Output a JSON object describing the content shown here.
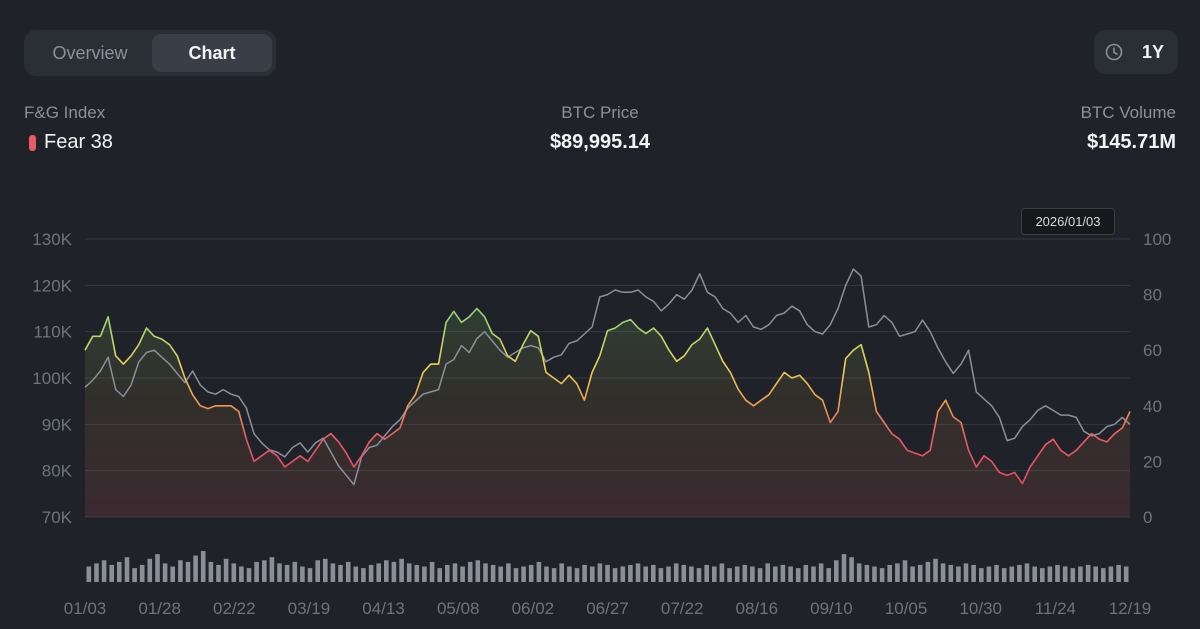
{
  "tabs": {
    "overview": "Overview",
    "chart": "Chart"
  },
  "range": {
    "label": "1Y",
    "icon": "clock-icon"
  },
  "stats": {
    "fg_label": "F&G Index",
    "fg_value": "Fear 38",
    "price_label": "BTC Price",
    "price_value": "$89,995.14",
    "volume_label": "BTC Volume",
    "volume_value": "$145.71M"
  },
  "tooltip_date": "2026/01/03",
  "colors": {
    "background": "#1f2228",
    "price_line": "#8a909a",
    "fear": "#e85a66",
    "neutral": "#e8d35a",
    "greed": "#7cd37a"
  },
  "chart_data": {
    "type": "line",
    "x_ticks": [
      "01/03",
      "01/28",
      "02/22",
      "03/19",
      "04/13",
      "05/08",
      "06/02",
      "06/27",
      "07/22",
      "08/16",
      "09/10",
      "10/05",
      "10/30",
      "11/24",
      "12/19"
    ],
    "y_left": {
      "label": "",
      "ticks": [
        "70K",
        "80K",
        "90K",
        "100K",
        "110K",
        "120K",
        "130K"
      ],
      "range": [
        70000,
        130000
      ]
    },
    "y_right": {
      "label": "",
      "ticks": [
        "0",
        "20",
        "40",
        "60",
        "80",
        "100"
      ],
      "range": [
        0,
        100
      ]
    },
    "grid": true,
    "series": [
      {
        "axis": "left",
        "values": [
          98000,
          99500,
          101500,
          104500,
          97500,
          96000,
          98500,
          103500,
          105500,
          106000,
          104500,
          103000,
          101000,
          99000,
          101500,
          98500,
          97000,
          96500,
          97500,
          96500,
          96000,
          93500,
          88000,
          86000,
          84500,
          84000,
          83000,
          85000,
          86000,
          84000,
          86000,
          87000,
          84000,
          81000,
          79000,
          77000,
          83000,
          85000,
          85500,
          87500,
          89500,
          91000,
          93500,
          95000,
          96500,
          97000,
          97500,
          103000,
          104000,
          107000,
          105500,
          108500,
          110000,
          108000,
          106000,
          104500,
          105500,
          106500,
          107000,
          106500,
          103500,
          104500,
          105000,
          107500,
          108000,
          109500,
          111000,
          117500,
          118000,
          119000,
          118500,
          118500,
          119000,
          117500,
          116500,
          114500,
          116000,
          118000,
          117000,
          119000,
          122500,
          118500,
          117500,
          115000,
          114000,
          112000,
          113500,
          111000,
          110500,
          111500,
          113500,
          114000,
          115500,
          114500,
          111500,
          110000,
          109500,
          111500,
          115000,
          120000,
          123500,
          122000,
          111000,
          111500,
          113500,
          112000,
          109000,
          109500,
          110000,
          112500,
          110000,
          106500,
          103500,
          101000,
          103000,
          106000,
          97000,
          95500,
          94000,
          91500,
          86500,
          87000,
          89500,
          91000,
          93000,
          94000,
          93000,
          92000,
          92000,
          91500,
          88500,
          87500,
          88000,
          89500,
          90000,
          91500,
          89995
        ]
      },
      {
        "axis": "right",
        "values": [
          60,
          65,
          65,
          72,
          58,
          55,
          58,
          62,
          68,
          65,
          64,
          62,
          58,
          50,
          44,
          40,
          39,
          40,
          40,
          40,
          38,
          28,
          20,
          22,
          24,
          22,
          18,
          20,
          22,
          20,
          24,
          28,
          30,
          27,
          23,
          18,
          22,
          27,
          30,
          28,
          30,
          32,
          40,
          44,
          52,
          55,
          55,
          70,
          74,
          70,
          72,
          75,
          72,
          66,
          64,
          58,
          56,
          62,
          67,
          65,
          52,
          50,
          48,
          51,
          48,
          42,
          52,
          58,
          67,
          68,
          70,
          71,
          68,
          66,
          68,
          65,
          60,
          56,
          58,
          62,
          64,
          68,
          62,
          56,
          52,
          46,
          42,
          40,
          42,
          44,
          48,
          52,
          50,
          51,
          48,
          44,
          42,
          34,
          38,
          57,
          60,
          62,
          52,
          38,
          34,
          30,
          28,
          24,
          23,
          22,
          24,
          38,
          42,
          36,
          34,
          24,
          18,
          22,
          20,
          16,
          15,
          16,
          12,
          18,
          22,
          26,
          28,
          24,
          22,
          24,
          27,
          30,
          28,
          27,
          30,
          32,
          38
        ]
      }
    ],
    "volume": [
      10,
      12,
      14,
      11,
      13,
      16,
      9,
      11,
      15,
      18,
      12,
      10,
      14,
      13,
      17,
      20,
      13,
      11,
      15,
      12,
      10,
      9,
      13,
      14,
      16,
      12,
      11,
      13,
      10,
      9,
      14,
      15,
      12,
      11,
      13,
      10,
      9,
      11,
      12,
      14,
      13,
      15,
      12,
      11,
      10,
      13,
      9,
      11,
      12,
      10,
      13,
      14,
      12,
      11,
      10,
      12,
      9,
      10,
      11,
      13,
      10,
      9,
      12,
      10,
      9,
      11,
      10,
      12,
      11,
      9,
      10,
      11,
      12,
      10,
      11,
      9,
      10,
      12,
      11,
      10,
      9,
      11,
      10,
      12,
      9,
      10,
      11,
      10,
      9,
      12,
      10,
      11,
      10,
      9,
      11,
      10,
      12,
      9,
      14,
      18,
      16,
      12,
      11,
      10,
      9,
      11,
      12,
      14,
      10,
      11,
      13,
      15,
      12,
      11,
      10,
      12,
      11,
      9,
      10,
      11,
      9,
      10,
      11,
      12,
      10,
      9,
      10,
      11,
      10,
      9,
      10,
      11,
      10,
      9,
      10,
      11,
      10
    ],
    "volume_axis_max": 40
  }
}
